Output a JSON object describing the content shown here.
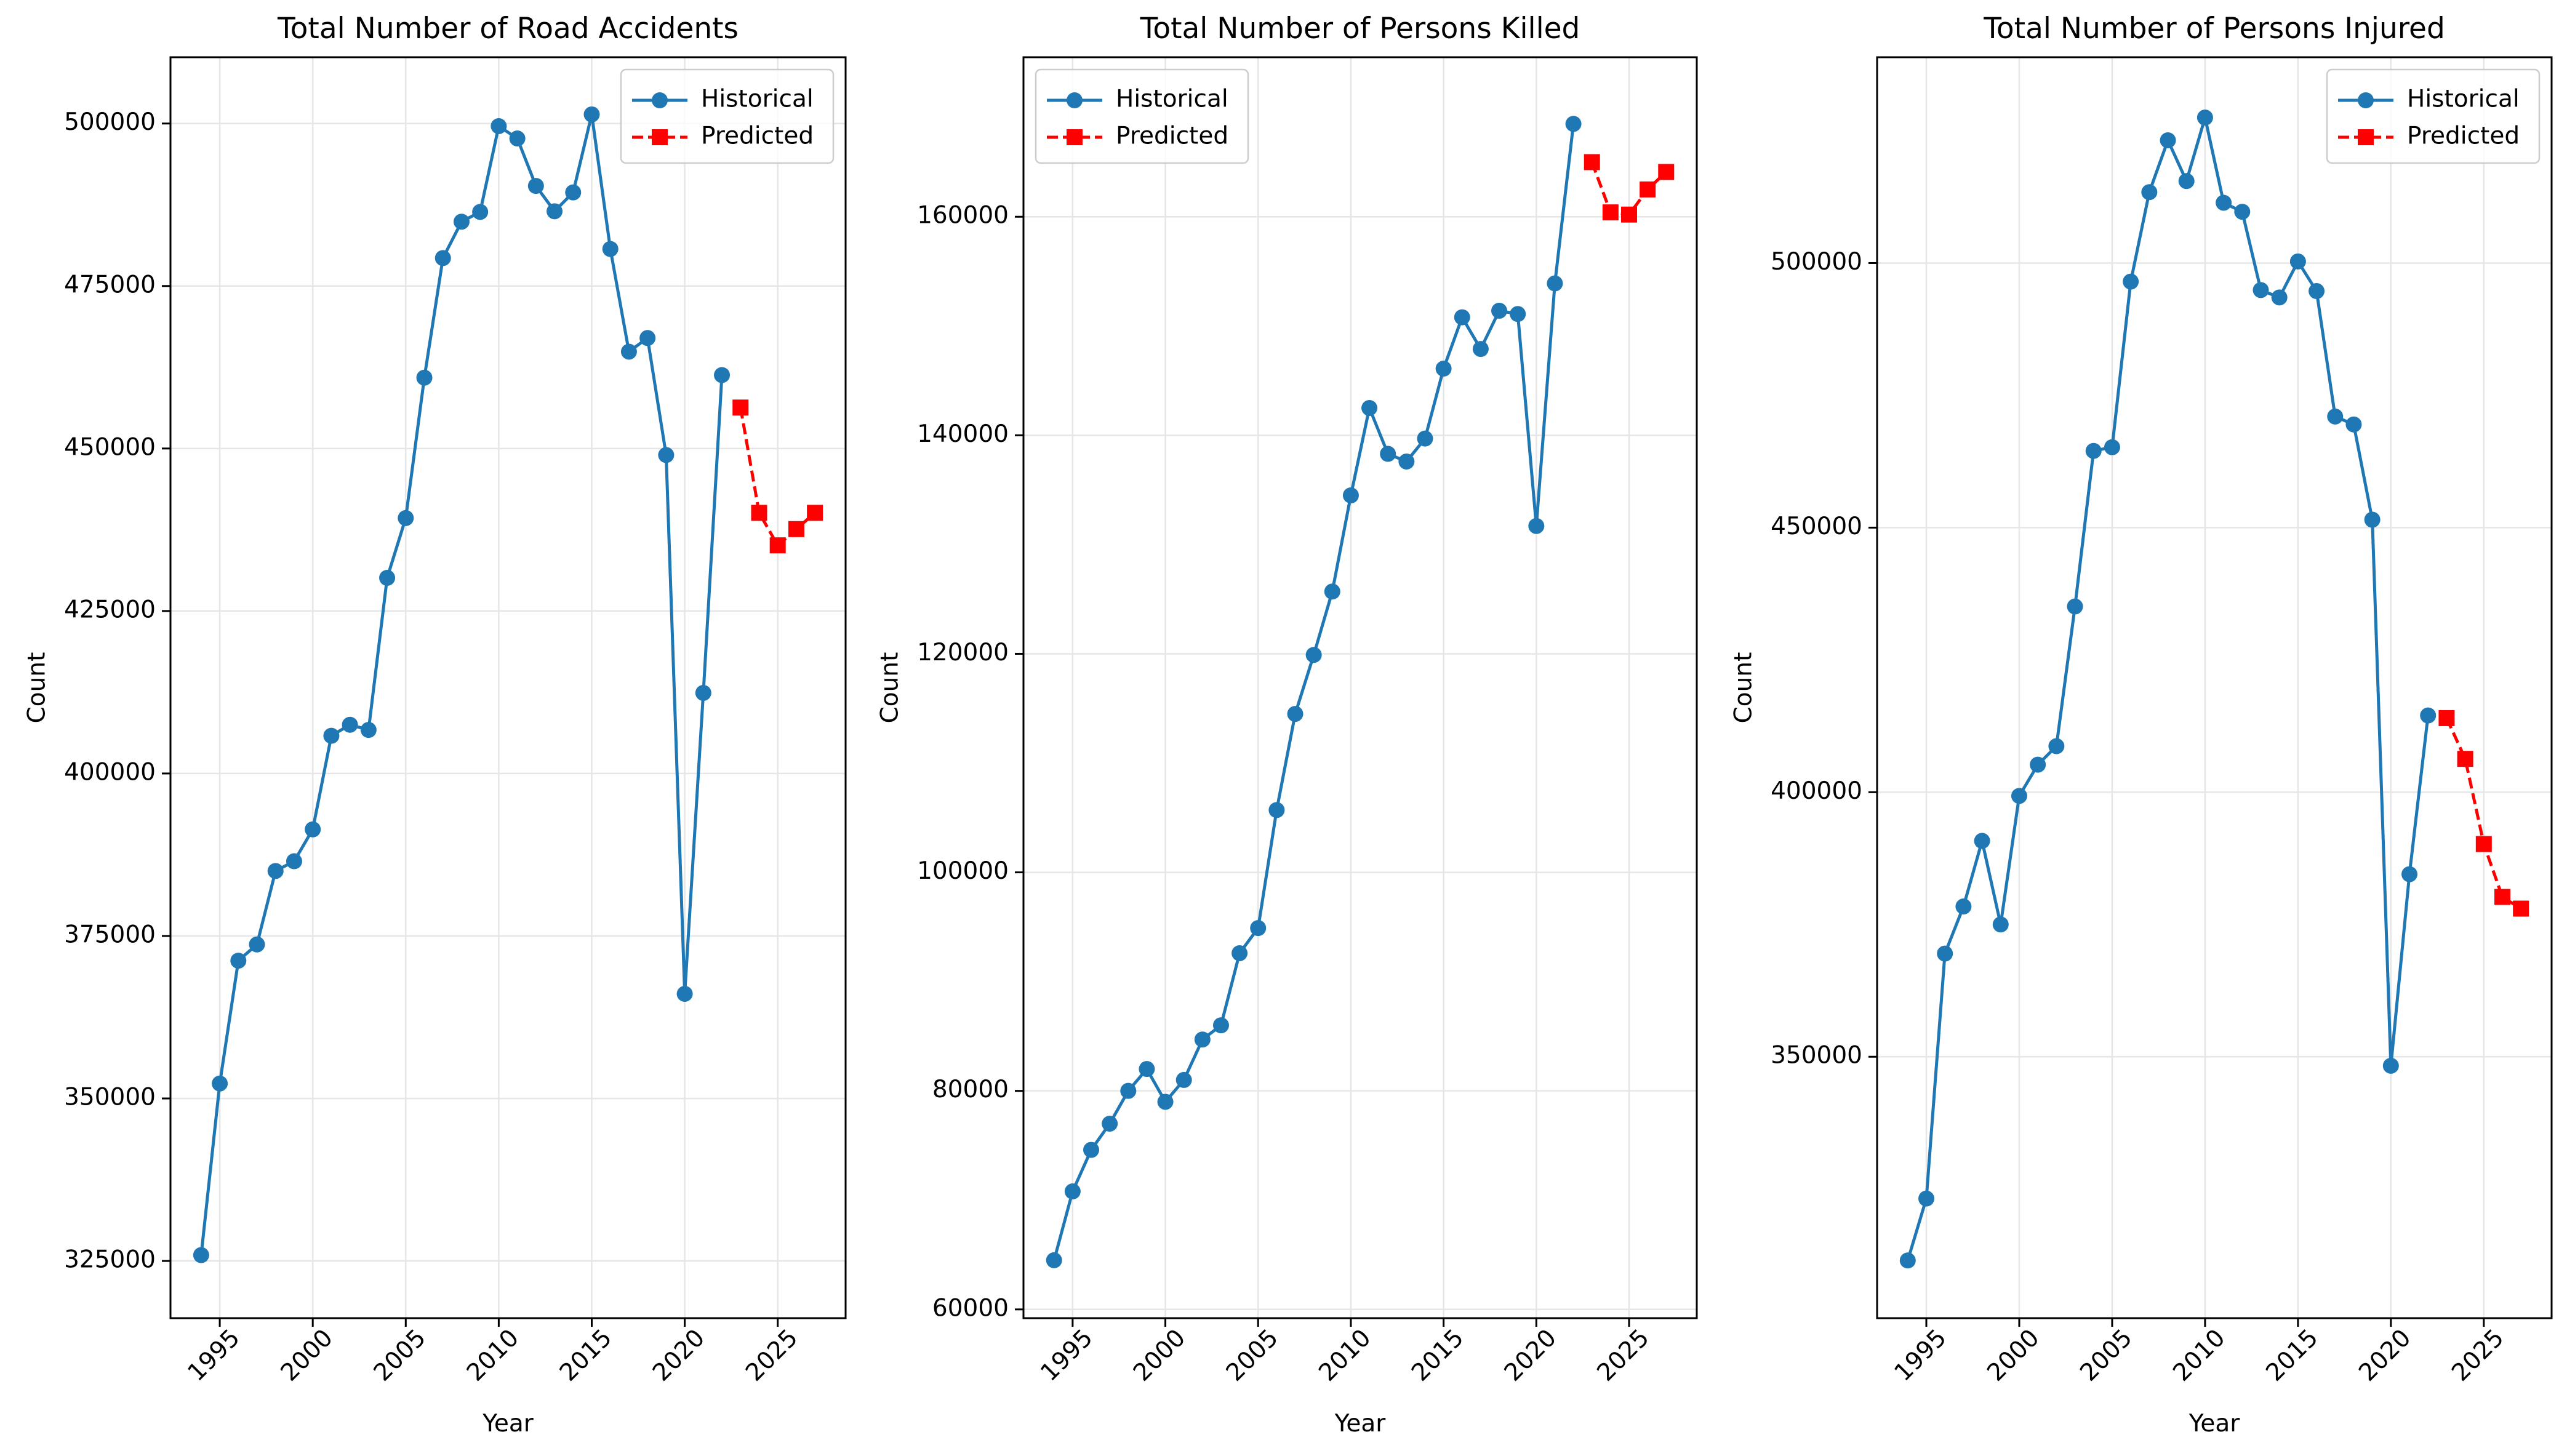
{
  "colors": {
    "historical": "#1f77b4",
    "predicted": "#ff0000",
    "grid": "#e6e6e6"
  },
  "chart_data": [
    {
      "type": "line",
      "title": "Total Number of Road Accidents",
      "xlabel": "Year",
      "ylabel": "Count",
      "xlim": [
        1992.35,
        2028.65
      ],
      "ylim": [
        316200,
        510200
      ],
      "xticks": [
        1995,
        2000,
        2005,
        2010,
        2015,
        2020,
        2025
      ],
      "yticks": [
        325000,
        350000,
        375000,
        400000,
        425000,
        450000,
        475000,
        500000
      ],
      "grid": true,
      "legend": {
        "position": "top-right",
        "entries": [
          "Historical",
          "Predicted"
        ]
      },
      "series": [
        {
          "name": "Historical",
          "style": "solid-circle",
          "x": [
            1994,
            1995,
            1996,
            1997,
            1998,
            1999,
            2000,
            2001,
            2002,
            2003,
            2004,
            2005,
            2006,
            2007,
            2008,
            2009,
            2010,
            2011,
            2012,
            2013,
            2014,
            2015,
            2016,
            2017,
            2018,
            2019,
            2020,
            2021,
            2022
          ],
          "y": [
            325900,
            352300,
            371200,
            373700,
            385000,
            386500,
            391400,
            405800,
            407500,
            406700,
            430100,
            439300,
            460900,
            479300,
            484900,
            486400,
            499600,
            497700,
            490400,
            486500,
            489400,
            501400,
            480700,
            464900,
            467000,
            449000,
            366100,
            412400,
            461300
          ]
        },
        {
          "name": "Predicted",
          "style": "dashed-square",
          "x": [
            2023,
            2024,
            2025,
            2026,
            2027
          ],
          "y": [
            456300,
            440100,
            435100,
            437600,
            440100
          ]
        }
      ]
    },
    {
      "type": "line",
      "title": "Total Number of Persons Killed",
      "xlabel": "Year",
      "ylabel": "Count",
      "xlim": [
        1992.35,
        2028.65
      ],
      "ylim": [
        59200,
        174600
      ],
      "xticks": [
        1995,
        2000,
        2005,
        2010,
        2015,
        2020,
        2025
      ],
      "yticks": [
        60000,
        80000,
        100000,
        120000,
        140000,
        160000
      ],
      "grid": true,
      "legend": {
        "position": "top-left",
        "entries": [
          "Historical",
          "Predicted"
        ]
      },
      "series": [
        {
          "name": "Historical",
          "style": "solid-circle",
          "x": [
            1994,
            1995,
            1996,
            1997,
            1998,
            1999,
            2000,
            2001,
            2002,
            2003,
            2004,
            2005,
            2006,
            2007,
            2008,
            2009,
            2010,
            2011,
            2012,
            2013,
            2014,
            2015,
            2016,
            2017,
            2018,
            2019,
            2020,
            2021,
            2022
          ],
          "y": [
            64500,
            70800,
            74600,
            77000,
            80000,
            82000,
            79000,
            81000,
            84700,
            86000,
            92600,
            94900,
            105700,
            114500,
            119900,
            125700,
            134500,
            142500,
            138300,
            137600,
            139700,
            146100,
            150800,
            147900,
            151400,
            151100,
            131700,
            153900,
            168500
          ]
        },
        {
          "name": "Predicted",
          "style": "dashed-square",
          "x": [
            2023,
            2024,
            2025,
            2026,
            2027
          ],
          "y": [
            165000,
            160400,
            160200,
            162500,
            164100
          ]
        }
      ]
    },
    {
      "type": "line",
      "title": "Total Number of Persons Injured",
      "xlabel": "Year",
      "ylabel": "Count",
      "xlim": [
        1992.35,
        2028.65
      ],
      "ylim": [
        300600,
        538900
      ],
      "xticks": [
        1995,
        2000,
        2005,
        2010,
        2015,
        2020,
        2025
      ],
      "yticks": [
        350000,
        400000,
        450000,
        500000
      ],
      "grid": true,
      "legend": {
        "position": "top-right",
        "entries": [
          "Historical",
          "Predicted"
        ]
      },
      "series": [
        {
          "name": "Historical",
          "style": "solid-circle",
          "x": [
            1994,
            1995,
            1996,
            1997,
            1998,
            1999,
            2000,
            2001,
            2002,
            2003,
            2004,
            2005,
            2006,
            2007,
            2008,
            2009,
            2010,
            2011,
            2012,
            2013,
            2014,
            2015,
            2016,
            2017,
            2018,
            2019,
            2020,
            2021,
            2022
          ],
          "y": [
            311500,
            323200,
            369500,
            378400,
            390800,
            375000,
            399300,
            405200,
            408700,
            435100,
            464500,
            465200,
            496500,
            513400,
            523200,
            515500,
            527500,
            511400,
            509700,
            494900,
            493500,
            500300,
            494700,
            471000,
            469500,
            451500,
            348300,
            384500,
            414500
          ]
        },
        {
          "name": "Predicted",
          "style": "dashed-square",
          "x": [
            2023,
            2024,
            2025,
            2026,
            2027
          ],
          "y": [
            414000,
            406300,
            390200,
            380200,
            378000
          ]
        }
      ]
    }
  ]
}
